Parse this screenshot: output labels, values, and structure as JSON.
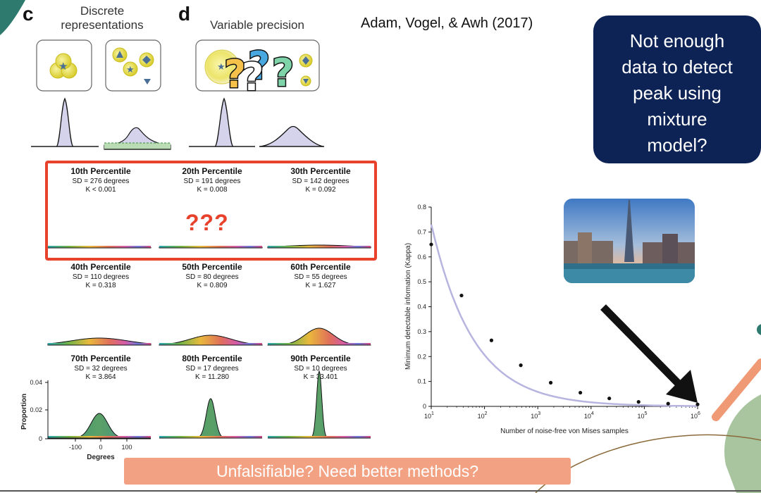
{
  "panel_c": {
    "letter": "c",
    "title_line1": "Discrete",
    "title_line2": "representations"
  },
  "panel_d": {
    "letter": "d",
    "title": "Variable precision"
  },
  "reference": "Adam, Vogel, & Awh (2017)",
  "callout": {
    "line1": "Not enough",
    "line2": "data to detect",
    "line3": "peak using",
    "line4": "mixture",
    "line5": "model?",
    "color": "#0d2255"
  },
  "question_marks": "???",
  "highlight_color": "#e8412c",
  "percentiles": [
    {
      "title": "10th Percentile",
      "sd": "SD = 276 degrees",
      "k": "K < 0.001"
    },
    {
      "title": "20th Percentile",
      "sd": "SD = 191 degrees",
      "k": "K = 0.008"
    },
    {
      "title": "30th Percentile",
      "sd": "SD = 142 degrees",
      "k": "K = 0.092"
    },
    {
      "title": "40th Percentile",
      "sd": "SD = 110 degrees",
      "k": "K = 0.318"
    },
    {
      "title": "50th Percentile",
      "sd": "SD = 80 degrees",
      "k": "K = 0.809"
    },
    {
      "title": "60th Percentile",
      "sd": "SD = 55 degrees",
      "k": "K = 1.627"
    },
    {
      "title": "70th Percentile",
      "sd": "SD = 32 degrees",
      "k": "K = 3.864"
    },
    {
      "title": "80th Percentile",
      "sd": "SD = 17 degrees",
      "k": "K = 11.280"
    },
    {
      "title": "90th Percentile",
      "sd": "SD = 10 degrees",
      "k": "K = 33.401"
    }
  ],
  "grid_axes": {
    "ylabel": "Proportion",
    "xlabel": "Degrees",
    "yticks": [
      "0",
      "0.02",
      "0.04"
    ],
    "xticks": [
      "-100",
      "0",
      "100"
    ]
  },
  "chart_data": {
    "type": "scatter",
    "xlabel": "Number of noise-free von Mises samples",
    "ylabel": "Minimum detectable information (Kappa)",
    "x_scale": "log",
    "xlim": [
      10,
      1000000
    ],
    "ylim": [
      0,
      0.8
    ],
    "yticks": [
      "0",
      "0.1",
      "0.2",
      "0.3",
      "0.4",
      "0.5",
      "0.6",
      "0.7",
      "0.8"
    ],
    "xticks": [
      {
        "base": "10",
        "exp": "1"
      },
      {
        "base": "10",
        "exp": "2"
      },
      {
        "base": "10",
        "exp": "3"
      },
      {
        "base": "10",
        "exp": "4"
      },
      {
        "base": "10",
        "exp": "5"
      },
      {
        "base": "10",
        "exp": "6"
      }
    ],
    "x": [
      10,
      37,
      135,
      480,
      1750,
      6300,
      22000,
      78000,
      280000,
      1000000
    ],
    "y": [
      0.65,
      0.445,
      0.265,
      0.165,
      0.095,
      0.055,
      0.032,
      0.018,
      0.011,
      0.008
    ],
    "fit_color": "#b7b4e0"
  },
  "banner": {
    "text": "Unfalsifiable? Need better methods?",
    "color": "#f2a182"
  }
}
